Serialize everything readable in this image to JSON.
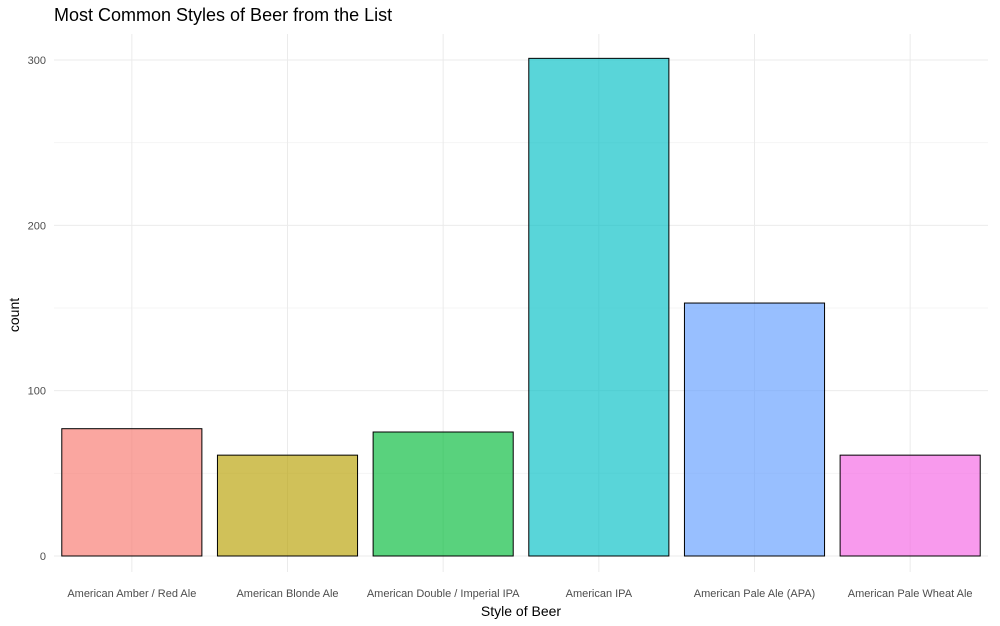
{
  "chart_data": {
    "type": "bar",
    "title": "Most Common Styles of Beer from the List",
    "xlabel": "Style of Beer",
    "ylabel": "count",
    "categories": [
      "American Amber / Red Ale",
      "American Blonde Ale",
      "American Double / Imperial IPA",
      "American IPA",
      "American Pale Ale (APA)",
      "American Pale Wheat Ale"
    ],
    "values": [
      77,
      61,
      75,
      301,
      153,
      61
    ],
    "colors": [
      "#F8766D",
      "#B79F00",
      "#00BA38",
      "#00BFC4",
      "#619CFF",
      "#F564E3"
    ],
    "ylim": [
      0,
      316
    ],
    "yticks": [
      0,
      100,
      200,
      300
    ],
    "grid": true,
    "legend": "none"
  }
}
